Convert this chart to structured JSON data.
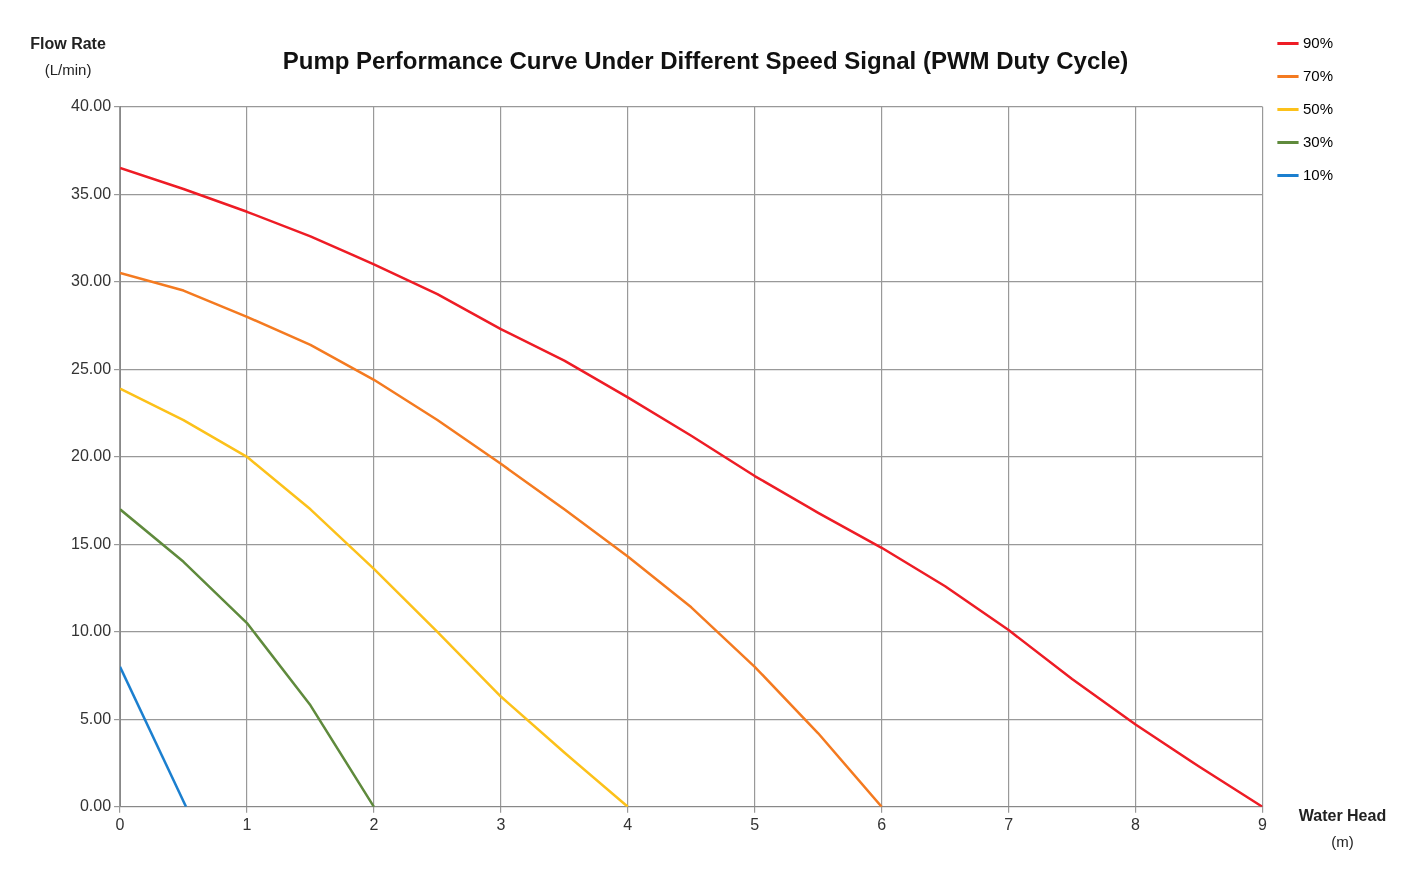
{
  "chart_data": {
    "type": "line",
    "title": "Pump Performance Curve Under Different Speed Signal (PWM Duty Cycle)",
    "xlabel": "Water Head (m)",
    "ylabel": "Flow Rate (L/min)",
    "xlim": [
      0,
      9
    ],
    "xticks": [
      0,
      1,
      2,
      3,
      4,
      5,
      6,
      7,
      8,
      9
    ],
    "ylim": [
      0,
      40
    ],
    "yticks": [
      {
        "value": 0,
        "label": "0.00"
      },
      {
        "value": 5,
        "label": "5.00"
      },
      {
        "value": 10,
        "label": "10.00"
      },
      {
        "value": 15,
        "label": "15.00"
      },
      {
        "value": 20,
        "label": "20.00"
      },
      {
        "value": 25,
        "label": "25.00"
      },
      {
        "value": 30,
        "label": "30.00"
      },
      {
        "value": 35,
        "label": "35.00"
      },
      {
        "value": 40,
        "label": "40.00"
      }
    ],
    "grid": true,
    "legend": "right",
    "marker": "none",
    "line_style": "solid",
    "series": [
      {
        "name": "90%",
        "color": "#ee1c25",
        "x": [
          0,
          0.5,
          1,
          1.5,
          2,
          2.5,
          3,
          3.5,
          4,
          4.5,
          5,
          5.5,
          6,
          6.5,
          7,
          7.5,
          8,
          8.5,
          9
        ],
        "values": [
          36.5,
          35.3,
          34.0,
          32.6,
          31.0,
          29.3,
          27.3,
          25.5,
          23.4,
          21.2,
          18.9,
          16.8,
          14.8,
          12.6,
          10.1,
          7.3,
          4.7,
          2.3,
          0
        ]
      },
      {
        "name": "70%",
        "color": "#f47a20",
        "x": [
          0,
          0.5,
          1,
          1.5,
          2,
          2.5,
          3,
          3.5,
          4,
          4.5,
          5,
          5.5,
          6
        ],
        "values": [
          30.5,
          29.5,
          28.0,
          26.4,
          24.4,
          22.1,
          19.6,
          17.0,
          14.3,
          11.4,
          8.0,
          4.2,
          0
        ]
      },
      {
        "name": "50%",
        "color": "#fcc11a",
        "x": [
          0,
          0.5,
          1,
          1.5,
          2,
          2.5,
          3,
          3.5,
          4
        ],
        "values": [
          23.9,
          22.1,
          20.0,
          17.0,
          13.6,
          10.0,
          6.3,
          3.1,
          0
        ]
      },
      {
        "name": "30%",
        "color": "#5f8a3c",
        "x": [
          0,
          0.5,
          1,
          1.5,
          2
        ],
        "values": [
          17.0,
          14.0,
          10.5,
          5.8,
          0
        ]
      },
      {
        "name": "10%",
        "color": "#1b7fcf",
        "x": [
          0,
          0.52
        ],
        "values": [
          8.0,
          0
        ]
      }
    ]
  }
}
